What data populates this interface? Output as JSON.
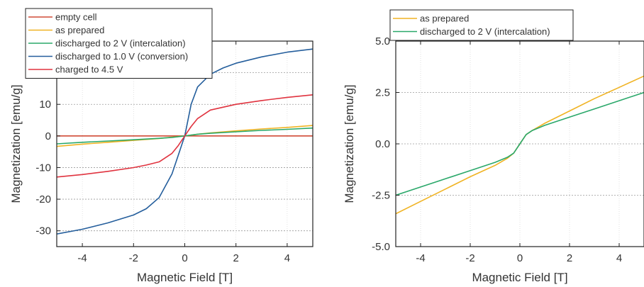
{
  "chart_data": [
    {
      "type": "line",
      "xlabel": "Magnetic Field [T]",
      "ylabel": "Magnetization [emu/g]",
      "xlim": [
        -5,
        5
      ],
      "ylim": [
        -35,
        30
      ],
      "xticks": [
        -4,
        -2,
        0,
        2,
        4
      ],
      "yticks": [
        -30,
        -20,
        -10,
        0,
        10,
        20
      ],
      "grid": true,
      "legend_position": "top-left",
      "series": [
        {
          "name": "empty cell",
          "color": "#d04a36",
          "x": [
            -5,
            5
          ],
          "y": [
            0,
            0
          ]
        },
        {
          "name": "as prepared",
          "color": "#f0b323",
          "x": [
            -5,
            -4,
            -3,
            -2,
            -1,
            -0.5,
            0,
            0.5,
            1,
            2,
            3,
            4,
            5
          ],
          "y": [
            -3.3,
            -2.6,
            -2.0,
            -1.4,
            -0.8,
            -0.4,
            0,
            0.55,
            0.95,
            1.6,
            2.2,
            2.7,
            3.3
          ]
        },
        {
          "name": "discharged to 2 V (intercalation)",
          "color": "#2aa86a",
          "x": [
            -5,
            -4,
            -3,
            -2,
            -1,
            -0.5,
            0,
            0.5,
            1,
            2,
            3,
            4,
            5
          ],
          "y": [
            -2.5,
            -2.0,
            -1.6,
            -1.2,
            -0.75,
            -0.45,
            0,
            0.55,
            0.85,
            1.3,
            1.75,
            2.1,
            2.5
          ]
        },
        {
          "name": "discharged to 1.0 V (conversion)",
          "color": "#245e9c",
          "x": [
            -5,
            -4,
            -3,
            -2,
            -1.5,
            -1,
            -0.5,
            -0.25,
            0,
            0.25,
            0.5,
            1,
            1.5,
            2,
            3,
            4,
            5
          ],
          "y": [
            -31,
            -29.5,
            -27.5,
            -25,
            -23,
            -19.5,
            -12,
            -6,
            0,
            10,
            15.5,
            19.5,
            21.5,
            23,
            25,
            26.5,
            27.5
          ]
        },
        {
          "name": "charged to 4.5 V",
          "color": "#e0333f",
          "x": [
            -5,
            -4,
            -3,
            -2,
            -1.5,
            -1,
            -0.5,
            -0.25,
            0,
            0.25,
            0.5,
            1,
            2,
            3,
            4,
            5
          ],
          "y": [
            -13,
            -12.2,
            -11.2,
            -10,
            -9.2,
            -8.2,
            -5.5,
            -3,
            0,
            3,
            5.5,
            8.2,
            10,
            11.2,
            12.2,
            13
          ]
        }
      ]
    },
    {
      "type": "line",
      "xlabel": "Magnetic Field [T]",
      "ylabel": "Magnetization [emu/g]",
      "xlim": [
        -5,
        5
      ],
      "ylim": [
        -5,
        5
      ],
      "xticks": [
        -4,
        -2,
        0,
        2,
        4
      ],
      "yticks": [
        -5.0,
        -2.5,
        0.0,
        2.5,
        5.0
      ],
      "ytick_labels": [
        "-5.0",
        "-2.5",
        "0.0",
        "2.5",
        "5.0"
      ],
      "grid": true,
      "legend_position": "top-left",
      "series": [
        {
          "name": "as prepared",
          "color": "#f0b323",
          "x": [
            -5,
            -4,
            -3,
            -2,
            -1,
            -0.5,
            -0.25,
            0,
            0.25,
            0.5,
            1,
            2,
            3,
            4,
            5
          ],
          "y": [
            -3.4,
            -2.8,
            -2.2,
            -1.6,
            -1.05,
            -0.7,
            -0.45,
            0,
            0.45,
            0.65,
            1.0,
            1.6,
            2.2,
            2.75,
            3.3
          ]
        },
        {
          "name": "discharged to 2 V (intercalation)",
          "color": "#2aa86a",
          "x": [
            -5,
            -4,
            -3,
            -2,
            -1,
            -0.5,
            -0.25,
            0,
            0.25,
            0.5,
            1,
            2,
            3,
            4,
            5
          ],
          "y": [
            -2.5,
            -2.1,
            -1.7,
            -1.3,
            -0.9,
            -0.65,
            -0.45,
            0,
            0.45,
            0.65,
            0.9,
            1.3,
            1.7,
            2.1,
            2.5
          ]
        }
      ]
    }
  ]
}
